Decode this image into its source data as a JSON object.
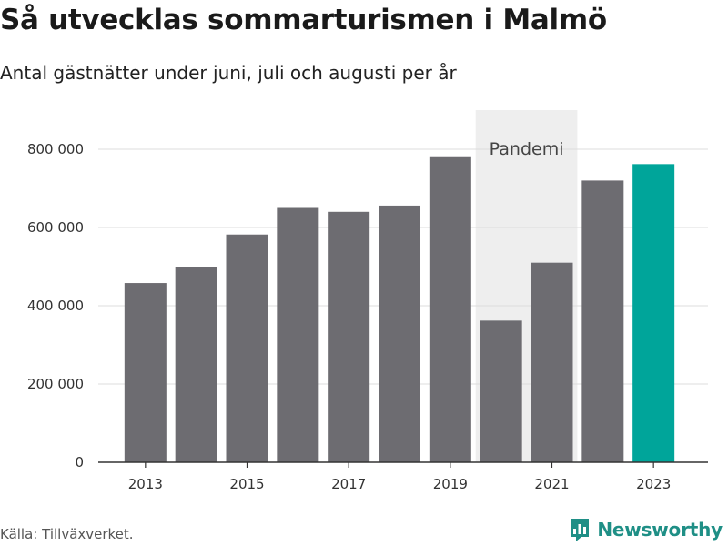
{
  "title": "Så utvecklas sommarturismen i Malmö",
  "subtitle": "Antal gästnätter under juni, juli och augusti per år",
  "source": "Källa: Tillväxverket.",
  "brand": {
    "name": "Newsworthy",
    "icon": "newsworthy-chart-icon",
    "color": "#1f8f86"
  },
  "chart_data": {
    "type": "bar",
    "categories": [
      "2013",
      "2014",
      "2015",
      "2016",
      "2017",
      "2018",
      "2019",
      "2020",
      "2021",
      "2022",
      "2023"
    ],
    "values": [
      458000,
      500000,
      582000,
      650000,
      640000,
      656000,
      782000,
      362000,
      510000,
      720000,
      762000
    ],
    "ylim": [
      0,
      800000
    ],
    "y_ticks": [
      0,
      200000,
      400000,
      600000,
      800000
    ],
    "y_tick_labels": [
      "0",
      "200 000",
      "400 000",
      "600 000",
      "800 000"
    ],
    "x_tick_labels": [
      "2013",
      "2015",
      "2017",
      "2019",
      "2021",
      "2023"
    ],
    "highlight": {
      "category": "2023",
      "color": "#00a59a"
    },
    "bar_color": "#6d6c71",
    "shaded_band": {
      "label": "Pandemi",
      "from": "2020",
      "to": "2021",
      "color": "#eeeeee"
    },
    "grid": true,
    "xlabel": "",
    "ylabel": ""
  }
}
